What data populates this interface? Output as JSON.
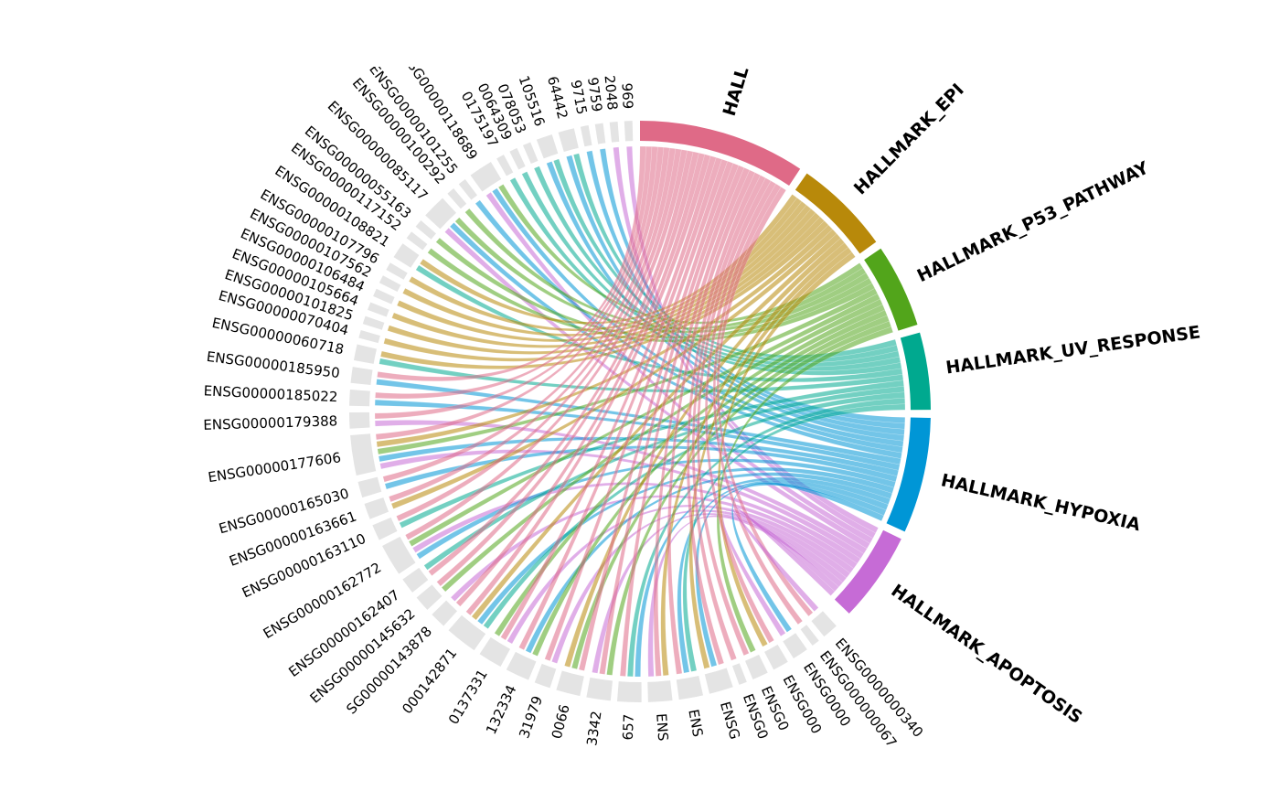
{
  "chart_data": {
    "type": "chord",
    "hallmarks": [
      {
        "label": "HALL",
        "color": "#df6a87"
      },
      {
        "label": "HALLMARK_EPI",
        "color": "#b8890a"
      },
      {
        "label": "HALLMARK_P53_PATHWAY",
        "color": "#52a51b"
      },
      {
        "label": "HALLMARK_UV_RESPONSE",
        "color": "#00a98f"
      },
      {
        "label": "HALLMARK_HYPOXIA",
        "color": "#0096d6"
      },
      {
        "label": "HALLMARK_APOPTOSIS",
        "color": "#c66bd6"
      }
    ],
    "gene_color": "#e4e4e4",
    "genes": [
      {
        "label": "ENSG0000000340",
        "links": [
          5,
          0
        ]
      },
      {
        "label": "ENSG000000067",
        "links": [
          0
        ]
      },
      {
        "label": "ENSG0000",
        "links": [
          4,
          5
        ]
      },
      {
        "label": "ENSG000",
        "links": [
          0,
          1
        ]
      },
      {
        "label": "ENSG0",
        "links": [
          2,
          0
        ]
      },
      {
        "label": "ENSG0",
        "links": [
          0
        ]
      },
      {
        "label": "ENSG",
        "links": [
          0,
          4,
          1
        ]
      },
      {
        "label": "ENS",
        "links": [
          3,
          4,
          0
        ]
      },
      {
        "label": "ENS",
        "links": [
          1,
          0,
          5
        ]
      },
      {
        "label": "657",
        "links": [
          4,
          3,
          0
        ]
      },
      {
        "label": "3342",
        "links": [
          2,
          0,
          5
        ]
      },
      {
        "label": "0066",
        "links": [
          0,
          2,
          1
        ]
      },
      {
        "label": "31979",
        "links": [
          5,
          0
        ]
      },
      {
        "label": "132334",
        "links": [
          2,
          4,
          0
        ]
      },
      {
        "label": "0137331",
        "links": [
          5,
          0,
          2
        ]
      },
      {
        "label": "000142871",
        "links": [
          3,
          4,
          1,
          0
        ]
      },
      {
        "label": "SG00000143878",
        "links": [
          0,
          5
        ]
      },
      {
        "label": "ENSG00000145632",
        "links": [
          2,
          0
        ]
      },
      {
        "label": "ENSG00000162407",
        "links": [
          0,
          3
        ]
      },
      {
        "label": "ENSG00000162772",
        "links": [
          4,
          5,
          2,
          0
        ]
      },
      {
        "label": "ENSG00000163110",
        "links": [
          3,
          0
        ]
      },
      {
        "label": "ENSG00000163661",
        "links": [
          1,
          0
        ]
      },
      {
        "label": "ENSG00000165030",
        "links": [
          4,
          0
        ]
      },
      {
        "label": "ENSG00000177606",
        "links": [
          5,
          4,
          2,
          1,
          0
        ]
      },
      {
        "label": "ENSG00000179388",
        "links": [
          5,
          0
        ]
      },
      {
        "label": "ENSG00000185022",
        "links": [
          4,
          0
        ]
      },
      {
        "label": "ENSG00000185950",
        "links": [
          4,
          0
        ]
      },
      {
        "label": "ENSG00000060718",
        "links": [
          3,
          1
        ]
      },
      {
        "label": "ENSG00000070404",
        "links": [
          1
        ]
      },
      {
        "label": "ENSG00000101825",
        "links": [
          1
        ]
      },
      {
        "label": "ENSG00000105664",
        "links": [
          1
        ]
      },
      {
        "label": "ENSG00000106484",
        "links": [
          1
        ]
      },
      {
        "label": "ENSG00000107562",
        "links": [
          1
        ]
      },
      {
        "label": "ENSG00000107796",
        "links": [
          1
        ]
      },
      {
        "label": "ENSG00000108821",
        "links": [
          3,
          1
        ]
      },
      {
        "label": "ENSG00000117152",
        "links": [
          2
        ]
      },
      {
        "label": "ENSG00000055163",
        "links": [
          2
        ]
      },
      {
        "label": "ENSG00000085117",
        "links": [
          5,
          4,
          2
        ]
      },
      {
        "label": "ENSG00000100292",
        "links": [
          2
        ]
      },
      {
        "label": "ENSG00000101255",
        "links": [
          4
        ]
      },
      {
        "label": "ENSG00000118689",
        "links": [
          5,
          4,
          2
        ]
      },
      {
        "label": "0175197",
        "links": [
          3
        ]
      },
      {
        "label": "0064309",
        "links": [
          3
        ]
      },
      {
        "label": "078053",
        "links": [
          3
        ]
      },
      {
        "label": "105516",
        "links": [
          4,
          3
        ]
      },
      {
        "label": "64442",
        "links": [
          4,
          3
        ]
      },
      {
        "label": "9715",
        "links": [
          4
        ]
      },
      {
        "label": "9759",
        "links": [
          4
        ]
      },
      {
        "label": "2048",
        "links": [
          5
        ]
      },
      {
        "label": "969",
        "links": [
          5
        ]
      }
    ]
  }
}
